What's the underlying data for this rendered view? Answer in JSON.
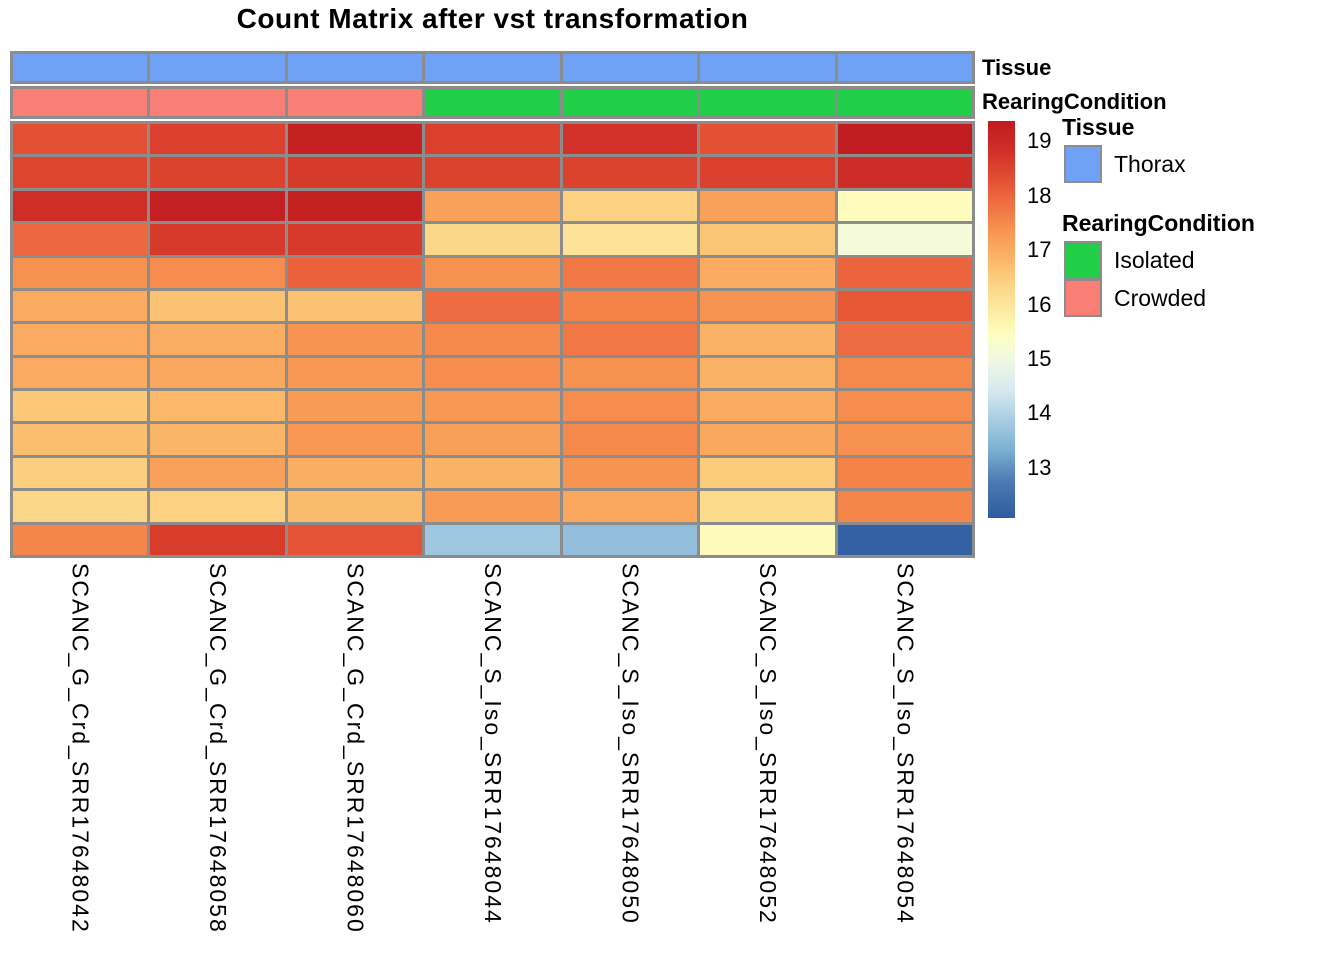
{
  "title": "Count Matrix after vst transformation",
  "annotation_rows": {
    "tissue": {
      "label": "Tissue",
      "values": [
        "Thorax",
        "Thorax",
        "Thorax",
        "Thorax",
        "Thorax",
        "Thorax",
        "Thorax"
      ]
    },
    "rearing": {
      "label": "RearingCondition",
      "values": [
        "Crowded",
        "Crowded",
        "Crowded",
        "Isolated",
        "Isolated",
        "Isolated",
        "Isolated"
      ]
    }
  },
  "annotation_colors": {
    "Thorax": "#6FA1F7",
    "Isolated": "#20CE48",
    "Crowded": "#F97F76"
  },
  "chart_data": {
    "type": "heatmap",
    "title": "Count Matrix after vst transformation",
    "columns": [
      "SCANC_G_Crd_SRR17648042",
      "SCANC_G_Crd_SRR17648058",
      "SCANC_G_Crd_SRR17648060",
      "SCANC_S_Iso_SRR17648044",
      "SCANC_S_Iso_SRR17648050",
      "SCANC_S_Iso_SRR17648052",
      "SCANC_S_Iso_SRR17648054"
    ],
    "n_rows": 13,
    "row_labels_shown": false,
    "values": [
      [
        18.3,
        18.55,
        19.2,
        18.55,
        18.8,
        18.3,
        19.3
      ],
      [
        18.45,
        18.5,
        18.65,
        18.5,
        18.5,
        18.55,
        18.9
      ],
      [
        18.85,
        19.25,
        19.2,
        17.15,
        16.4,
        17.15,
        15.5
      ],
      [
        17.95,
        18.65,
        18.65,
        16.3,
        16.05,
        16.6,
        15.1
      ],
      [
        17.4,
        17.45,
        18.05,
        17.4,
        17.75,
        17.0,
        18.0
      ],
      [
        17.0,
        16.65,
        16.65,
        17.9,
        17.6,
        17.35,
        18.2
      ],
      [
        17.0,
        16.95,
        17.35,
        17.5,
        17.75,
        16.9,
        17.9
      ],
      [
        17.0,
        17.05,
        17.3,
        17.45,
        17.4,
        16.9,
        17.5
      ],
      [
        16.55,
        16.8,
        17.25,
        17.3,
        17.45,
        17.0,
        17.45
      ],
      [
        16.7,
        16.85,
        17.3,
        17.2,
        17.5,
        17.05,
        17.4
      ],
      [
        16.45,
        17.15,
        16.95,
        16.9,
        17.35,
        16.5,
        17.6
      ],
      [
        16.3,
        16.4,
        16.75,
        17.25,
        17.05,
        16.25,
        17.55
      ],
      [
        17.55,
        18.6,
        18.25,
        13.75,
        13.6,
        15.55,
        12.2
      ]
    ],
    "color_scale": {
      "max": 19.37,
      "min": 12.08,
      "ticks": [
        19,
        18,
        17,
        16,
        15,
        14,
        13
      ],
      "stops": [
        {
          "v": 19.37,
          "color": "#C01B20"
        },
        {
          "v": 18.83,
          "color": "#D02F27"
        },
        {
          "v": 18.38,
          "color": "#E04A30"
        },
        {
          "v": 17.92,
          "color": "#EF6A40"
        },
        {
          "v": 17.37,
          "color": "#F79350"
        },
        {
          "v": 16.82,
          "color": "#FBB768"
        },
        {
          "v": 16.27,
          "color": "#FCD98A"
        },
        {
          "v": 15.72,
          "color": "#FDF3AC"
        },
        {
          "v": 15.44,
          "color": "#FEFEC2"
        },
        {
          "v": 14.98,
          "color": "#F0F8E2"
        },
        {
          "v": 14.43,
          "color": "#D7E9F1"
        },
        {
          "v": 13.88,
          "color": "#A9CDE2"
        },
        {
          "v": 13.33,
          "color": "#7CB0D4"
        },
        {
          "v": 12.78,
          "color": "#4E7CB4"
        },
        {
          "v": 12.08,
          "color": "#2E5C9F"
        }
      ]
    }
  },
  "legend": {
    "tissue": {
      "title": "Tissue",
      "items": [
        {
          "label": "Thorax",
          "color": "#6FA1F7"
        }
      ]
    },
    "rearing_condition": {
      "title": "RearingCondition",
      "items": [
        {
          "label": "Isolated",
          "color": "#20CE48"
        },
        {
          "label": "Crowded",
          "color": "#F97F76"
        }
      ]
    }
  },
  "colors": {
    "grid_line": "#8C8C8C",
    "background": "#FFFFFF",
    "text": "#000000"
  }
}
